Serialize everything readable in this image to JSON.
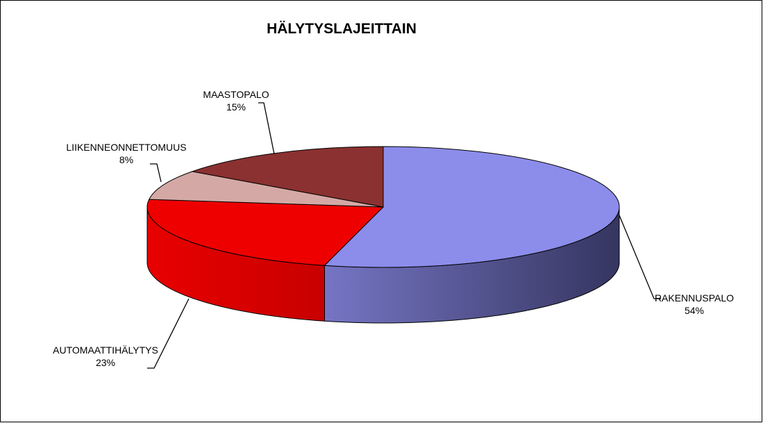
{
  "chart_data": {
    "type": "pie",
    "style": "3d",
    "title": "HÄLYTYSLAJEITTAIN",
    "categories": [
      "RAKENNUSPALO",
      "AUTOMAATTIHÄLYTYS",
      "LIIKENNEONNETTOMUUS",
      "MAASTOPALO"
    ],
    "values": [
      54,
      23,
      8,
      15
    ],
    "labels": [
      "54%",
      "23%",
      "8%",
      "15%"
    ],
    "colors": [
      "#8C8CEB",
      "#EE0000",
      "#D4A9A5",
      "#8B3131"
    ],
    "side_colors": [
      [
        "#7575C4",
        "#353560"
      ],
      [
        "#E80000",
        "#C80000"
      ],
      [
        "#B08A87",
        "#6E2626"
      ],
      [
        "#6E2626",
        "#551E1E"
      ]
    ],
    "legend": "none"
  }
}
